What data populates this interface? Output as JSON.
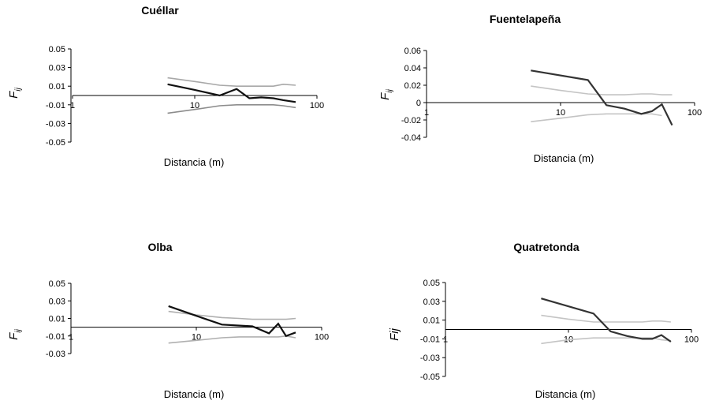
{
  "chart_data": [
    {
      "type": "line",
      "title": "Cuéllar",
      "xlabel": "Distancia (m)",
      "ylabel": "F",
      "ylabel_sub": "ij",
      "x_scale": "log",
      "xlim": [
        1,
        100
      ],
      "x_ticks": [
        1,
        10,
        100
      ],
      "x_tick_labels": [
        "1",
        "10",
        "100"
      ],
      "ylim": [
        -0.05,
        0.05
      ],
      "y_ticks": [
        -0.05,
        -0.03,
        -0.01,
        0.01,
        0.03,
        0.05
      ],
      "y_tick_labels": [
        "-0.05",
        "-0.03",
        "-0.01",
        "0.01",
        "0.03",
        "0.05"
      ],
      "grid": false,
      "legend": "none",
      "series": [
        {
          "role": "observed",
          "color": "#111111",
          "x": [
            6,
            10,
            16,
            22,
            28,
            35,
            44,
            53,
            67
          ],
          "y": [
            0.012,
            0.006,
            0.0,
            0.007,
            -0.003,
            -0.002,
            -0.003,
            -0.005,
            -0.007
          ]
        },
        {
          "role": "upper",
          "color": "#a8a8a8",
          "x": [
            6,
            10,
            16,
            22,
            28,
            35,
            44,
            53,
            67
          ],
          "y": [
            0.019,
            0.015,
            0.011,
            0.01,
            0.01,
            0.01,
            0.01,
            0.012,
            0.011
          ]
        },
        {
          "role": "lower",
          "color": "#8c8c8c",
          "x": [
            6,
            10,
            16,
            22,
            28,
            35,
            44,
            53,
            67
          ],
          "y": [
            -0.019,
            -0.015,
            -0.011,
            -0.01,
            -0.01,
            -0.01,
            -0.01,
            -0.011,
            -0.013
          ]
        }
      ]
    },
    {
      "type": "line",
      "title": "Fuentelapeña",
      "xlabel": "Distancia (m)",
      "ylabel": "F",
      "ylabel_sub": "ij",
      "x_scale": "log",
      "xlim": [
        1,
        100
      ],
      "x_ticks": [
        1,
        10,
        100
      ],
      "x_tick_labels": [
        "1",
        "10",
        "100"
      ],
      "ylim": [
        -0.04,
        0.06
      ],
      "y_ticks": [
        -0.04,
        -0.02,
        0,
        0.02,
        0.04,
        0.06
      ],
      "y_tick_labels": [
        "-0.04",
        "-0.02",
        "0",
        "0.02",
        "0.04",
        "0.06"
      ],
      "grid": false,
      "legend": "none",
      "series": [
        {
          "role": "observed",
          "color": "#333333",
          "x": [
            6,
            16,
            22,
            30,
            40,
            48,
            57,
            68
          ],
          "y": [
            0.037,
            0.026,
            -0.003,
            -0.007,
            -0.013,
            -0.01,
            -0.002,
            -0.026
          ]
        },
        {
          "role": "upper",
          "color": "#c4c4c4",
          "x": [
            6,
            10,
            16,
            22,
            30,
            40,
            48,
            57,
            68
          ],
          "y": [
            0.019,
            0.014,
            0.01,
            0.009,
            0.009,
            0.01,
            0.01,
            0.009,
            0.009
          ]
        },
        {
          "role": "lower",
          "color": "#c4c4c4",
          "x": [
            6,
            10,
            16,
            22,
            30,
            40,
            48,
            57
          ],
          "y": [
            -0.022,
            -0.018,
            -0.014,
            -0.013,
            -0.013,
            -0.013,
            -0.013,
            -0.015
          ]
        }
      ]
    },
    {
      "type": "line",
      "title": "Olba",
      "xlabel": "Distancia (m)",
      "ylabel": "F",
      "ylabel_sub": "ij",
      "x_scale": "log",
      "xlim": [
        1,
        100
      ],
      "x_ticks": [
        1,
        10,
        100
      ],
      "x_tick_labels": [
        "1",
        "10",
        "100"
      ],
      "ylim": [
        -0.03,
        0.05
      ],
      "y_ticks": [
        -0.03,
        -0.01,
        0.01,
        0.03,
        0.05
      ],
      "y_tick_labels": [
        "-0.03",
        "-0.01",
        "0.01",
        "0.03",
        "0.05"
      ],
      "grid": false,
      "legend": "none",
      "series": [
        {
          "role": "observed",
          "color": "#111111",
          "x": [
            6,
            10,
            16,
            28,
            38,
            45,
            52,
            62
          ],
          "y": [
            0.024,
            0.013,
            0.003,
            0.001,
            -0.007,
            0.004,
            -0.01,
            -0.006
          ]
        },
        {
          "role": "upper",
          "color": "#b0b0b0",
          "x": [
            6,
            10,
            16,
            22,
            28,
            38,
            45,
            52,
            62
          ],
          "y": [
            0.018,
            0.014,
            0.011,
            0.01,
            0.009,
            0.009,
            0.009,
            0.009,
            0.01
          ]
        },
        {
          "role": "lower",
          "color": "#b0b0b0",
          "x": [
            6,
            10,
            16,
            22,
            28,
            38,
            45,
            52,
            62
          ],
          "y": [
            -0.018,
            -0.015,
            -0.012,
            -0.011,
            -0.011,
            -0.011,
            -0.011,
            -0.01,
            -0.012
          ]
        }
      ]
    },
    {
      "type": "line",
      "title": "Quatretonda",
      "xlabel": "Distancia (m)",
      "ylabel": "Fij",
      "ylabel_sub": "",
      "x_scale": "log",
      "xlim": [
        1,
        100
      ],
      "x_ticks": [
        1,
        10,
        100
      ],
      "x_tick_labels": [
        "1",
        "10",
        "100"
      ],
      "ylim": [
        -0.05,
        0.05
      ],
      "y_ticks": [
        -0.05,
        -0.03,
        -0.01,
        0.01,
        0.03,
        0.05
      ],
      "y_tick_labels": [
        "-0.05",
        "-0.03",
        "-0.01",
        "0.01",
        "0.03",
        "0.05"
      ],
      "grid": false,
      "legend": "none",
      "series": [
        {
          "role": "observed",
          "color": "#333333",
          "x": [
            6,
            16,
            22,
            30,
            40,
            48,
            57,
            68
          ],
          "y": [
            0.033,
            0.017,
            -0.002,
            -0.007,
            -0.01,
            -0.01,
            -0.006,
            -0.013
          ]
        },
        {
          "role": "upper",
          "color": "#c4c4c4",
          "x": [
            6,
            10,
            16,
            22,
            30,
            40,
            48,
            57,
            68
          ],
          "y": [
            0.015,
            0.011,
            0.008,
            0.008,
            0.008,
            0.008,
            0.009,
            0.009,
            0.008
          ]
        },
        {
          "role": "lower",
          "color": "#c4c4c4",
          "x": [
            6,
            10,
            16,
            22,
            30,
            40,
            48,
            57,
            68
          ],
          "y": [
            -0.015,
            -0.011,
            -0.009,
            -0.009,
            -0.009,
            -0.009,
            -0.009,
            -0.011,
            -0.012
          ]
        }
      ]
    }
  ]
}
